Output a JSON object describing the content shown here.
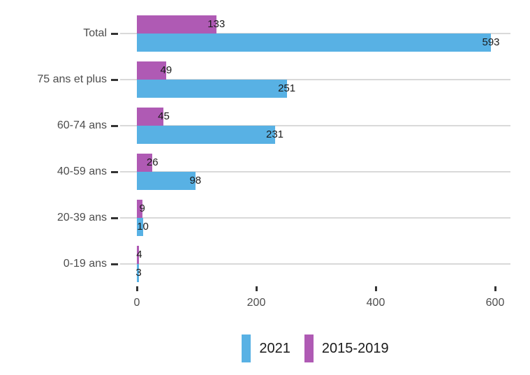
{
  "chart_data": {
    "type": "bar",
    "orientation": "horizontal",
    "title": "",
    "categories": [
      "Total",
      "75 ans et plus",
      "60-74 ans",
      "40-59 ans",
      "20-39 ans",
      "0-19 ans"
    ],
    "series": [
      {
        "name": "2021",
        "color": "#58B1E4",
        "values": [
          593,
          251,
          231,
          98,
          10,
          3
        ]
      },
      {
        "name": "2015-2019",
        "color": "#AF5AB4",
        "values": [
          133,
          49,
          45,
          26,
          9,
          4
        ]
      }
    ],
    "x_axis": {
      "tick_labels": [
        "0",
        "200",
        "400",
        "600"
      ],
      "tick_values": [
        0,
        200,
        400,
        600
      ],
      "range": [
        0,
        627
      ]
    },
    "grid": {
      "horizontal_major": true,
      "vertical": false,
      "color": "#d9d9d9"
    },
    "legend": {
      "position": "bottom",
      "entries": [
        {
          "label": "2021",
          "color": "#58B1E4"
        },
        {
          "label": "2015-2019",
          "color": "#AF5AB4"
        }
      ]
    },
    "value_labels": {
      "placement": "at bar end, centered",
      "color": "#1a1a1a"
    }
  },
  "colors": {
    "background": "#ffffff",
    "series_2021": "#58B1E4",
    "series_2015_2019": "#AF5AB4",
    "gridline": "#d9d9d9",
    "tick_mark": "#333333",
    "axis_text": "#4d4d4d",
    "value_text": "#1a1a1a"
  }
}
